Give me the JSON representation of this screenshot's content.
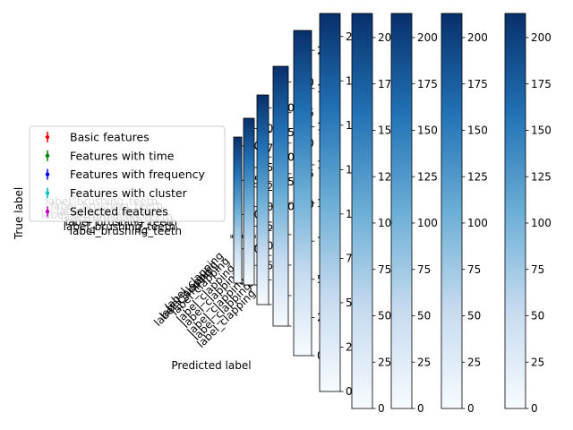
{
  "colors": {
    "cmap_top": "#08306b",
    "cmap_upper": "#2171b5",
    "cmap_mid": "#6baed6",
    "cmap_lower": "#c6dbef",
    "cmap_bottom": "#f7fbff",
    "legend_border": "#cccccc"
  },
  "chart_data": {
    "type": "heatmap",
    "title": "",
    "xlabel": "Predicted label",
    "ylabel": "True label",
    "colormap": "Blues",
    "colorbar_range": [
      0,
      213
    ],
    "colorbars": [
      {
        "ticks": [
          0,
          50,
          100,
          150,
          200
        ]
      },
      {
        "ticks": [
          0,
          25,
          50,
          75,
          100,
          125,
          150,
          175,
          200
        ]
      },
      {
        "ticks": [
          0,
          25,
          50,
          75,
          100,
          125,
          150,
          175,
          200
        ]
      },
      {
        "ticks": [
          0,
          25,
          50,
          75,
          100,
          125,
          150,
          175,
          200
        ]
      },
      {
        "ticks": [
          0,
          25,
          50,
          75,
          100,
          125,
          150,
          175,
          200
        ]
      },
      {
        "ticks": [
          0,
          25,
          50,
          75,
          100,
          125,
          150,
          175,
          200
        ]
      },
      {
        "ticks": [
          0,
          25,
          50,
          75,
          100,
          125,
          150,
          175,
          200
        ]
      },
      {
        "ticks": [
          0,
          25,
          50,
          75,
          100,
          125,
          150,
          175,
          200
        ]
      },
      {
        "ticks": [
          0,
          25,
          50,
          75,
          100,
          125,
          150,
          175,
          200
        ]
      },
      {
        "ticks": [
          0,
          25,
          50,
          75,
          100,
          125,
          150,
          175,
          200
        ]
      }
    ],
    "legend": {
      "placement": "center-left",
      "entries": [
        {
          "name": "Basic features",
          "color": "#ff0000"
        },
        {
          "name": "Features with time",
          "color": "#008000"
        },
        {
          "name": "Features with frequency",
          "color": "#0000ff"
        },
        {
          "name": "Features with cluster",
          "color": "#00bfbf"
        },
        {
          "name": "Selected features",
          "color": "#bf00bf"
        }
      ]
    },
    "row_labels_visible": [
      "label_brushing_teeth"
    ],
    "col_labels_visible": [
      "label_clapping"
    ]
  }
}
